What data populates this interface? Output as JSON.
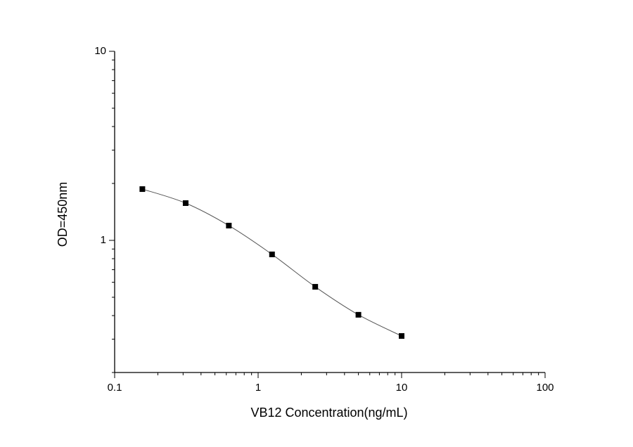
{
  "chart_data": {
    "type": "line",
    "xlabel": "VB12 Concentration(ng/mL)",
    "ylabel": "OD=450nm",
    "x": [
      0.156,
      0.3125,
      0.625,
      1.25,
      2.5,
      5,
      10
    ],
    "series": [
      {
        "color": "#000000",
        "values": [
          1.867,
          1.574,
          1.197,
          0.843,
          0.568,
          0.404,
          0.312
        ]
      }
    ],
    "xlog": true,
    "ylog": true,
    "xlim": [
      0.1,
      100
    ],
    "ylim": [
      0.2,
      10
    ],
    "xticks": [
      0.1,
      1,
      10,
      100
    ],
    "yticks": [
      1,
      10
    ]
  }
}
